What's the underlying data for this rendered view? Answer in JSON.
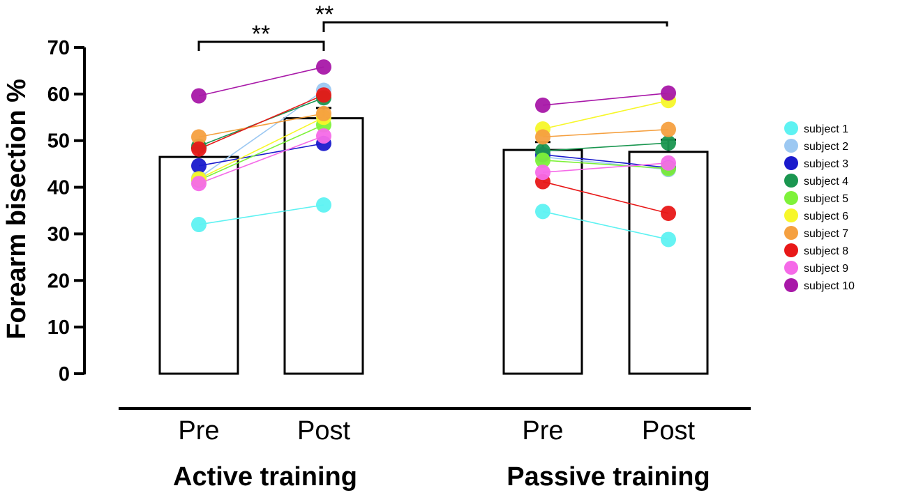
{
  "chart_data": {
    "type": "bar",
    "title": "",
    "ylabel": "Forearm bisection %",
    "ylim": [
      0,
      70
    ],
    "yticks": [
      0,
      10,
      20,
      30,
      40,
      50,
      60,
      70
    ],
    "groups": [
      {
        "label": "Active training",
        "categories": [
          "Pre",
          "Post"
        ],
        "means": [
          46.5,
          54.8
        ],
        "errors": [
          1.9,
          2.2
        ]
      },
      {
        "label": "Passive training",
        "categories": [
          "Pre",
          "Post"
        ],
        "means": [
          48.0,
          47.6
        ],
        "errors": [
          1.7,
          2.6
        ]
      }
    ],
    "series": [
      {
        "name": "subject 1",
        "color": "#5ef2f2",
        "values": [
          [
            32.0,
            36.2
          ],
          [
            34.8,
            28.8
          ]
        ]
      },
      {
        "name": "subject 2",
        "color": "#9cc8f2",
        "values": [
          [
            42.0,
            60.8
          ],
          [
            46.5,
            43.8
          ]
        ]
      },
      {
        "name": "subject 3",
        "color": "#1a1acc",
        "values": [
          [
            44.6,
            49.4
          ],
          [
            47.0,
            44.2
          ]
        ]
      },
      {
        "name": "subject 4",
        "color": "#1a9650",
        "values": [
          [
            48.8,
            59.2
          ],
          [
            47.8,
            49.5
          ]
        ]
      },
      {
        "name": "subject 5",
        "color": "#7ef23a",
        "values": [
          [
            41.5,
            53.4
          ],
          [
            45.8,
            44.0
          ]
        ]
      },
      {
        "name": "subject 6",
        "color": "#f7f72a",
        "values": [
          [
            41.8,
            55.0
          ],
          [
            52.5,
            58.6
          ]
        ]
      },
      {
        "name": "subject 7",
        "color": "#f5a040",
        "values": [
          [
            50.8,
            55.8
          ],
          [
            50.8,
            52.4
          ]
        ]
      },
      {
        "name": "subject 8",
        "color": "#e81818",
        "values": [
          [
            48.2,
            59.8
          ],
          [
            41.2,
            34.4
          ]
        ]
      },
      {
        "name": "subject 9",
        "color": "#f56ae8",
        "values": [
          [
            40.8,
            51.0
          ],
          [
            43.2,
            45.2
          ]
        ]
      },
      {
        "name": "subject 10",
        "color": "#a818a8",
        "values": [
          [
            59.6,
            65.8
          ],
          [
            57.6,
            60.2
          ]
        ]
      }
    ],
    "annotations": [
      {
        "label": "**",
        "from": "Active training Pre",
        "to": "Active training Post"
      },
      {
        "label": "**",
        "from": "Active training Post",
        "to": "Passive training Post"
      }
    ],
    "legend_position": "right"
  }
}
